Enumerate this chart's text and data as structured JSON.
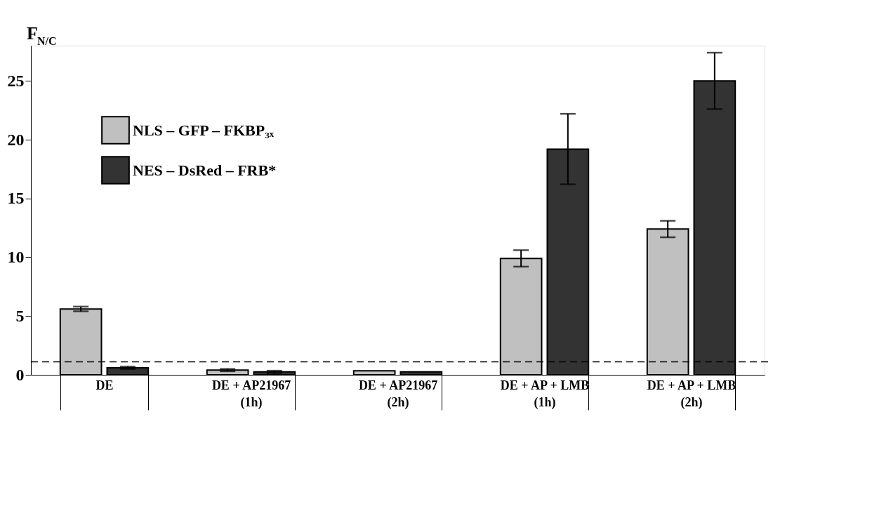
{
  "chart_data": {
    "type": "bar",
    "ylabel": "F$_{N/C}$",
    "categories": [
      "DE",
      "DE + AP21967\n(1h)",
      "DE + AP21967\n(2h)",
      "DE + AP + LMB\n(1h)",
      "DE + AP + LMB\n(2h)"
    ],
    "series": [
      {
        "name": "NLS – GFP – FKBP₃ₓ",
        "color": "#c0c0c0",
        "values": [
          5.6,
          0.4,
          0.35,
          9.9,
          12.4
        ],
        "errors": [
          0.2,
          0.1,
          null,
          0.7,
          0.7
        ]
      },
      {
        "name": "NES – DsRed – FRB*",
        "color": "#333333",
        "values": [
          0.6,
          0.25,
          0.25,
          19.2,
          25.0
        ],
        "errors": [
          0.1,
          0.1,
          null,
          3.0,
          2.4
        ]
      }
    ],
    "ylim": [
      0,
      28
    ],
    "yticks": [
      0,
      5,
      10,
      15,
      20,
      25
    ],
    "ref_lines": [
      {
        "axis": "y",
        "value": 1.1,
        "line_style": "dashed",
        "color": "#000000"
      }
    ],
    "legend": "top left",
    "grid": false
  }
}
